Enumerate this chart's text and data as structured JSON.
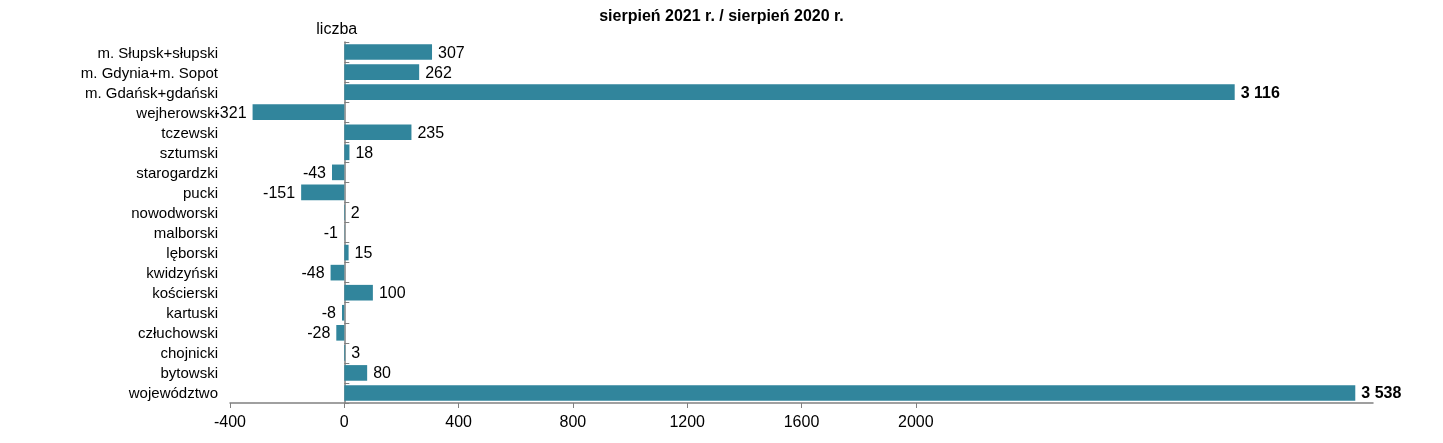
{
  "chart_data": {
    "type": "bar",
    "orientation": "horizontal",
    "title": "sierpień 2021 r. / sierpień 2020 r.",
    "xlabel": "liczba",
    "categories": [
      "m. Słupsk+słupski",
      "m. Gdynia+m. Sopot",
      "m. Gdańsk+gdański",
      "wejherowski",
      "tczewski",
      "sztumski",
      "starogardzki",
      "pucki",
      "nowodworski",
      "malborski",
      "lęborski",
      "kwidzyński",
      "kościerski",
      "kartuski",
      "człuchowski",
      "chojnicki",
      "bytowski",
      "województwo"
    ],
    "values": [
      307,
      262,
      3116,
      -321,
      235,
      18,
      -43,
      -151,
      2,
      -1,
      15,
      -48,
      100,
      -8,
      -28,
      3,
      80,
      3538
    ],
    "value_labels": [
      "307",
      "262",
      "3 116",
      "-321",
      "235",
      "18",
      "-43",
      "-151",
      "2",
      "-1",
      "15",
      "-48",
      "100",
      "-8",
      "-28",
      "3",
      "80",
      "3 538"
    ],
    "color": "#31859c",
    "xlim": [
      -400,
      3600
    ],
    "xticks": [
      -400,
      0,
      400,
      800,
      1200,
      1600,
      2000
    ]
  }
}
